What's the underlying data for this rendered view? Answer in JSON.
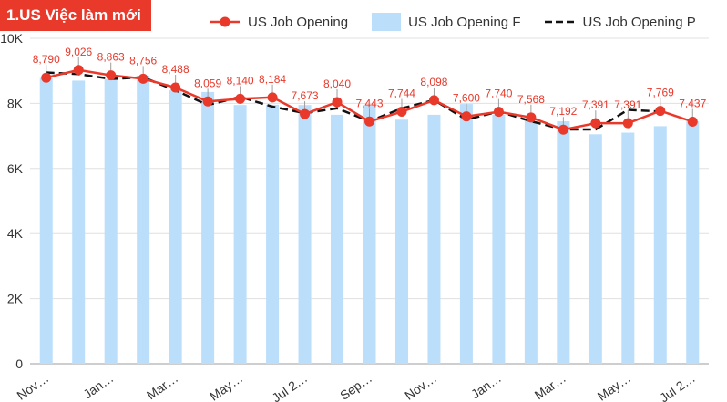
{
  "header": {
    "title": "1.US Việc làm mới"
  },
  "legend": [
    {
      "label": "US Job Opening",
      "kind": "line-dot",
      "color": "#e8392b"
    },
    {
      "label": "US Job Opening F",
      "kind": "bar",
      "color": "#bbdefb"
    },
    {
      "label": "US Job Opening P",
      "kind": "dash",
      "color": "#111111"
    }
  ],
  "chart_data": {
    "type": "bar",
    "categories": [
      "Nov…",
      "",
      "Jan…",
      "",
      "Mar…",
      "",
      "May…",
      "",
      "Jul 2…",
      "",
      "Sep…",
      "",
      "Nov…",
      "",
      "Jan…",
      "",
      "Mar…",
      "",
      "May…",
      "",
      "Jul 2…"
    ],
    "ylim": [
      0,
      10000
    ],
    "yticks": [
      0,
      2000,
      4000,
      6000,
      8000,
      10000
    ],
    "ytick_labels": [
      "0",
      "2K",
      "4K",
      "6K",
      "8K",
      "10K"
    ],
    "grid": true,
    "legend_position": "top",
    "series": [
      {
        "name": "US Job Opening F",
        "type": "bar",
        "color": "#bbdefb",
        "values": [
          8780,
          8700,
          8750,
          8850,
          8400,
          8350,
          7950,
          7960,
          7950,
          7650,
          7950,
          7500,
          7650,
          7980,
          7650,
          7450,
          7450,
          7050,
          7100,
          7300,
          7450
        ]
      },
      {
        "name": "US Job Opening",
        "type": "line",
        "color": "#e8392b",
        "values": [
          8790,
          9026,
          8863,
          8756,
          8488,
          8059,
          8140,
          8184,
          7673,
          8040,
          7443,
          7744,
          8098,
          7600,
          7740,
          7568,
          7192,
          7391,
          7391,
          7769,
          7437
        ],
        "labels": [
          "8,790",
          "9,026",
          "8,863",
          "8,756",
          "8,488",
          "8,059",
          "8,140",
          "8,184",
          "7,673",
          "8,040",
          "7,443",
          "7,744",
          "8,098",
          "7,600",
          "7,740",
          "7,568",
          "7,192",
          "7,391",
          "7,391",
          "7,769",
          "7,437"
        ]
      },
      {
        "name": "US Job Opening P",
        "type": "line",
        "color": "#111111",
        "dashed": true,
        "values": [
          8950,
          8900,
          8750,
          8800,
          8400,
          7950,
          8200,
          7900,
          7700,
          7850,
          7450,
          7850,
          8100,
          7500,
          7750,
          7450,
          7200,
          7200,
          7800,
          7750,
          null
        ]
      }
    ]
  }
}
